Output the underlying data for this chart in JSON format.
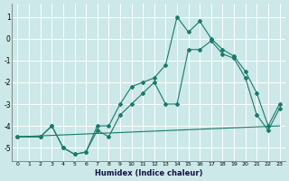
{
  "xlabel": "Humidex (Indice chaleur)",
  "bg_color": "#cce8e8",
  "grid_color": "#ffffff",
  "line_color": "#1a7a6a",
  "xlim": [
    -0.5,
    23.5
  ],
  "ylim": [
    -5.6,
    1.6
  ],
  "yticks": [
    1,
    0,
    -1,
    -2,
    -3,
    -4,
    -5
  ],
  "xticks": [
    0,
    1,
    2,
    3,
    4,
    5,
    6,
    7,
    8,
    9,
    10,
    11,
    12,
    13,
    14,
    15,
    16,
    17,
    18,
    19,
    20,
    21,
    22,
    23
  ],
  "line1_x": [
    0,
    2,
    3,
    4,
    5,
    6,
    7,
    8,
    9,
    10,
    11,
    12,
    13,
    14,
    15,
    16,
    17,
    18,
    19,
    20,
    21,
    22,
    23
  ],
  "line1_y": [
    -4.5,
    -4.5,
    -4.0,
    -5.0,
    -5.3,
    -5.2,
    -4.0,
    -4.0,
    -3.0,
    -2.2,
    -2.0,
    -1.8,
    -1.2,
    1.0,
    0.3,
    0.8,
    0.0,
    -0.5,
    -0.8,
    -1.5,
    -2.5,
    -4.0,
    -3.0
  ],
  "line2_x": [
    0,
    2,
    3,
    4,
    5,
    6,
    7,
    8,
    9,
    10,
    11,
    12,
    13,
    14,
    15,
    16,
    17,
    18,
    19,
    20,
    21,
    22,
    23
  ],
  "line2_y": [
    -4.5,
    -4.5,
    -4.0,
    -5.0,
    -5.3,
    -5.2,
    -4.2,
    -4.5,
    -3.5,
    -3.0,
    -2.5,
    -2.0,
    -3.0,
    -3.0,
    -0.5,
    -0.5,
    -0.1,
    -0.7,
    -0.9,
    -1.8,
    -3.5,
    -4.2,
    -3.2
  ],
  "line3_x": [
    0,
    23
  ],
  "line3_y": [
    -4.5,
    -4.0
  ]
}
